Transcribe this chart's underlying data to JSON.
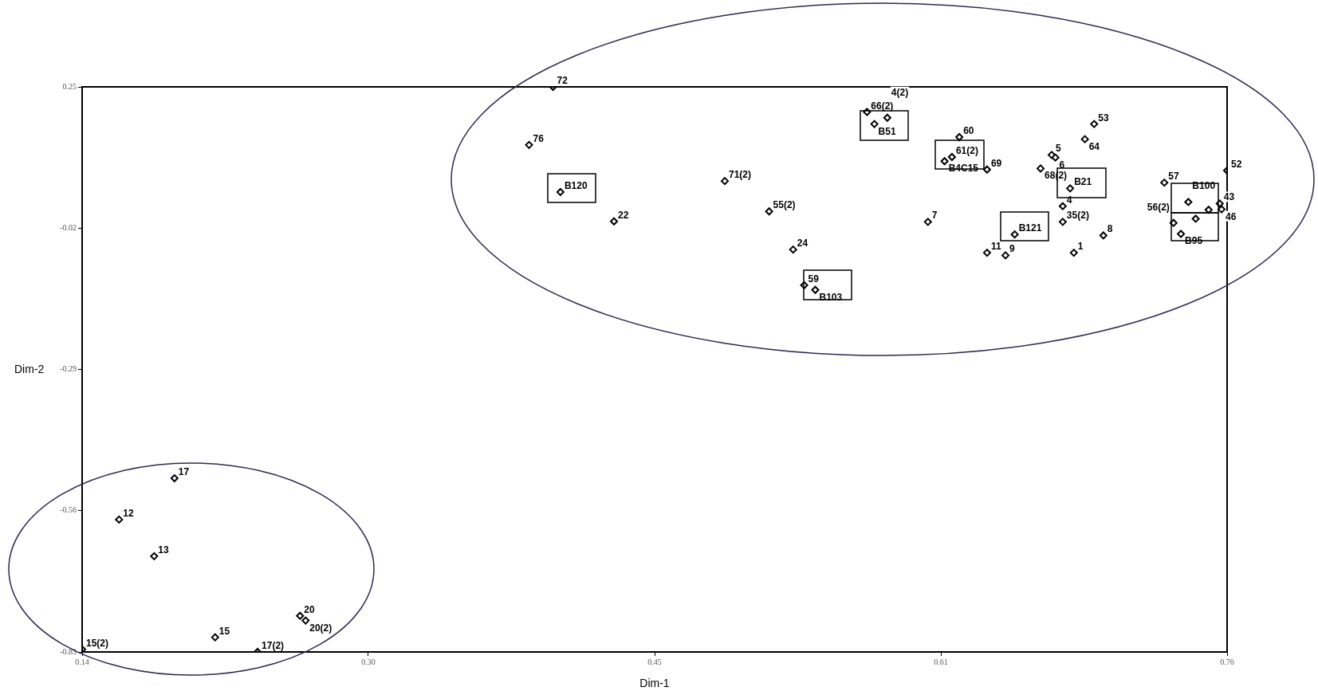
{
  "chart_data": {
    "type": "scatter",
    "xlabel": "Dim-1",
    "ylabel": "Dim-2",
    "marker": "diamond",
    "grid": false,
    "legend": false,
    "xlim": [
      0.14,
      0.76
    ],
    "xticks": [
      0.14,
      {
        "value": 0.295,
        "label": "0.30"
      },
      0.45,
      {
        "value": 0.605,
        "label": "0.61"
      },
      0.76
    ],
    "ylim": [
      -0.83,
      0.25
    ],
    "yticks": [
      -0.83,
      -0.56,
      -0.29,
      -0.02,
      0.25
    ],
    "series": [
      {
        "color": "#000000",
        "x": [
          0.395,
          0.382,
          0.399,
          0.428,
          0.488,
          0.512,
          0.525,
          0.531,
          0.537,
          0.565,
          0.569,
          0.576,
          0.615,
          0.607,
          0.611,
          0.63,
          0.688,
          0.683,
          0.665,
          0.667,
          0.659,
          0.675,
          0.671,
          0.671,
          0.598,
          0.645,
          0.63,
          0.64,
          0.677,
          0.693,
          0.726,
          0.76,
          0.739,
          0.731,
          0.735,
          0.743,
          0.75,
          0.755,
          0.756,
          0.757,
          0.19,
          0.16,
          0.179,
          0.212,
          0.14,
          0.235,
          0.258,
          0.261
        ],
        "values": [
          0.25,
          0.139,
          0.049,
          -0.007,
          0.07,
          0.012,
          -0.061,
          -0.129,
          -0.138,
          0.202,
          0.179,
          0.191,
          0.154,
          0.108,
          0.116,
          0.092,
          0.179,
          0.15,
          0.12,
          0.115,
          0.094,
          0.056,
          0.022,
          -0.008,
          -0.008,
          -0.032,
          -0.067,
          -0.072,
          -0.067,
          -0.034,
          0.067,
          0.09,
          0.03,
          -0.01,
          -0.031,
          -0.002,
          0.015,
          null,
          0.027,
          0.016,
          -0.498,
          -0.577,
          -0.647,
          -0.802,
          -0.825,
          -0.83,
          -0.761,
          -0.77
        ]
      }
    ],
    "annotations": [
      {
        "text": "72",
        "x": 0.395,
        "y": 0.25
      },
      {
        "text": "76",
        "x": 0.382,
        "y": 0.139
      },
      {
        "text": "B120",
        "x": 0.399,
        "y": 0.049
      },
      {
        "text": "22",
        "x": 0.428,
        "y": -0.007
      },
      {
        "text": "71(2)",
        "x": 0.488,
        "y": 0.07
      },
      {
        "text": "55(2)",
        "x": 0.512,
        "y": 0.012
      },
      {
        "text": "24",
        "x": 0.525,
        "y": -0.061
      },
      {
        "text": "59",
        "x": 0.531,
        "y": -0.129
      },
      {
        "text": "B103",
        "x": 0.537,
        "y": -0.138
      },
      {
        "text": "66(2)",
        "x": 0.565,
        "y": 0.202
      },
      {
        "text": "B51",
        "x": 0.569,
        "y": 0.179
      },
      {
        "text": "4(2)",
        "x": 0.576,
        "y": 0.191
      },
      {
        "text": "60",
        "x": 0.615,
        "y": 0.154
      },
      {
        "text": "B4C15",
        "x": 0.607,
        "y": 0.108
      },
      {
        "text": "61(2)",
        "x": 0.611,
        "y": 0.116
      },
      {
        "text": "69",
        "x": 0.63,
        "y": 0.092
      },
      {
        "text": "53",
        "x": 0.688,
        "y": 0.179
      },
      {
        "text": "64",
        "x": 0.683,
        "y": 0.15
      },
      {
        "text": "5",
        "x": 0.665,
        "y": 0.12
      },
      {
        "text": "6",
        "x": 0.667,
        "y": 0.115
      },
      {
        "text": "68(2)",
        "x": 0.659,
        "y": 0.094
      },
      {
        "text": "B21",
        "x": 0.675,
        "y": 0.056
      },
      {
        "text": "4",
        "x": 0.671,
        "y": 0.022
      },
      {
        "text": "35(2)",
        "x": 0.671,
        "y": -0.008
      },
      {
        "text": "7",
        "x": 0.598,
        "y": -0.008
      },
      {
        "text": "B121",
        "x": 0.645,
        "y": -0.032
      },
      {
        "text": "11",
        "x": 0.63,
        "y": -0.067
      },
      {
        "text": "9",
        "x": 0.64,
        "y": -0.072
      },
      {
        "text": "1",
        "x": 0.677,
        "y": -0.067
      },
      {
        "text": "8",
        "x": 0.693,
        "y": -0.034
      },
      {
        "text": "57",
        "x": 0.726,
        "y": 0.067
      },
      {
        "text": "52",
        "x": 0.76,
        "y": 0.09
      },
      {
        "text": "B100",
        "x": 0.739,
        "y": 0.03
      },
      {
        "text": "56(2)",
        "x": 0.731,
        "y": -0.01
      },
      {
        "text": "B95",
        "x": 0.735,
        "y": -0.031
      },
      {
        "text": "43",
        "x": 0.756,
        "y": 0.027
      },
      {
        "text": "46",
        "x": 0.757,
        "y": 0.016
      },
      {
        "text": "17",
        "x": 0.19,
        "y": -0.498
      },
      {
        "text": "12",
        "x": 0.16,
        "y": -0.577
      },
      {
        "text": "13",
        "x": 0.179,
        "y": -0.647
      },
      {
        "text": "15",
        "x": 0.212,
        "y": -0.802
      },
      {
        "text": "15(2)",
        "x": 0.14,
        "y": -0.825
      },
      {
        "text": "17(2)",
        "x": 0.235,
        "y": -0.83
      },
      {
        "text": "20",
        "x": 0.258,
        "y": -0.761
      },
      {
        "text": "20(2)",
        "x": 0.261,
        "y": -0.77
      }
    ]
  }
}
